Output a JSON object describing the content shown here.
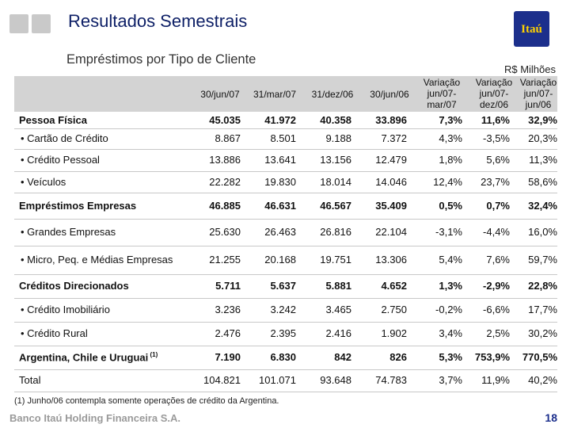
{
  "header": {
    "title": "Resultados Semestrais",
    "logo_text": "Itaú",
    "subtitle": "Empréstimos por Tipo de Cliente",
    "unit": "R$ Milhões"
  },
  "table": {
    "columns": [
      "30/jun/07",
      "31/mar/07",
      "31/dez/06",
      "30/jun/06",
      "Variação jun/07-mar/07",
      "Variação jun/07-dez/06",
      "Variação jun/07-jun/06"
    ],
    "column_lines": [
      [
        "30/jun/07"
      ],
      [
        "31/mar/07"
      ],
      [
        "31/dez/06"
      ],
      [
        "30/jun/06"
      ],
      [
        "Variação",
        "jun/07-",
        "mar/07"
      ],
      [
        "Variação",
        "jun/07-",
        "dez/06"
      ],
      [
        "Variação",
        "jun/07-",
        "jun/06"
      ]
    ],
    "rows": [
      {
        "label": "Pessoa Física",
        "type": "group",
        "values": [
          "45.035",
          "41.972",
          "40.358",
          "33.896",
          "7,3%",
          "11,6%",
          "32,9%"
        ]
      },
      {
        "label": "• Cartão de Crédito",
        "type": "item",
        "values": [
          "8.867",
          "8.501",
          "9.188",
          "7.372",
          "4,3%",
          "-3,5%",
          "20,3%"
        ]
      },
      {
        "label": "• Crédito Pessoal",
        "type": "item",
        "values": [
          "13.886",
          "13.641",
          "13.156",
          "12.479",
          "1,8%",
          "5,6%",
          "11,3%"
        ]
      },
      {
        "label": "• Veículos",
        "type": "item",
        "values": [
          "22.282",
          "19.830",
          "18.014",
          "14.046",
          "12,4%",
          "23,7%",
          "58,6%"
        ]
      },
      {
        "label": "Empréstimos Empresas",
        "type": "group",
        "values": [
          "46.885",
          "46.631",
          "46.567",
          "35.409",
          "0,5%",
          "0,7%",
          "32,4%"
        ]
      },
      {
        "label": "• Grandes Empresas",
        "type": "item",
        "values": [
          "25.630",
          "26.463",
          "26.816",
          "22.104",
          "-3,1%",
          "-4,4%",
          "16,0%"
        ]
      },
      {
        "label": "• Micro, Peq. e Médias Empresas",
        "type": "item",
        "values": [
          "21.255",
          "20.168",
          "19.751",
          "13.306",
          "5,4%",
          "7,6%",
          "59,7%"
        ]
      },
      {
        "label": "Créditos Direcionados",
        "type": "group",
        "values": [
          "5.711",
          "5.637",
          "5.881",
          "4.652",
          "1,3%",
          "-2,9%",
          "22,8%"
        ]
      },
      {
        "label": "• Crédito Imobiliário",
        "type": "item",
        "values": [
          "3.236",
          "3.242",
          "3.465",
          "2.750",
          "-0,2%",
          "-6,6%",
          "17,7%"
        ]
      },
      {
        "label": "• Crédito Rural",
        "type": "item",
        "values": [
          "2.476",
          "2.395",
          "2.416",
          "1.902",
          "3,4%",
          "2,5%",
          "30,2%"
        ]
      },
      {
        "label": "Argentina, Chile e Uruguai",
        "footnote_ref": "(1)",
        "type": "group",
        "values": [
          "7.190",
          "6.830",
          "842",
          "826",
          "5,3%",
          "753,9%",
          "770,5%"
        ]
      },
      {
        "label": "Total",
        "type": "total",
        "values": [
          "104.821",
          "101.071",
          "93.648",
          "74.783",
          "3,7%",
          "11,9%",
          "40,2%"
        ]
      }
    ]
  },
  "footnote": "(1) Junho/06 contempla somente operações de crédito da Argentina.",
  "footer": {
    "brand": "Banco Itaú Holding Financeira S.A.",
    "page_number": "18"
  },
  "colors": {
    "title": "#0d1f66",
    "brand_blue": "#1c2f8c",
    "brand_yellow": "#ffd200",
    "header_band": "#d3d3d3"
  }
}
